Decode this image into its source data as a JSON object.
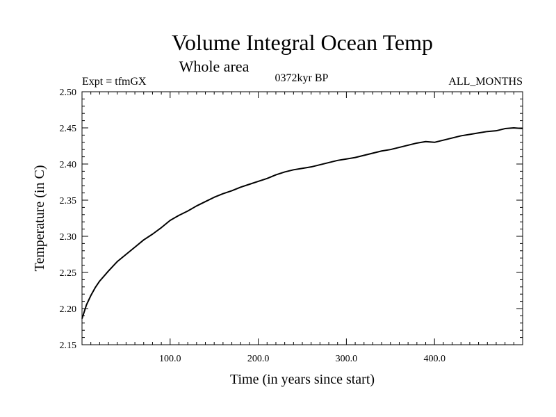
{
  "chart_data": {
    "type": "line",
    "title": "Volume Integral Ocean Temp",
    "subtitle": "Whole area",
    "header_left": "Expt = tfmGX",
    "header_center": "0372kyr BP",
    "header_right": "ALL_MONTHS",
    "xlabel": "Time (in years since start)",
    "ylabel": "Temperature (in C)",
    "xlim": [
      0,
      500
    ],
    "ylim": [
      2.15,
      2.5
    ],
    "x_ticks": [
      100,
      200,
      300,
      400
    ],
    "x_tick_labels": [
      "100.0",
      "200.0",
      "300.0",
      "400.0"
    ],
    "y_ticks": [
      2.15,
      2.2,
      2.25,
      2.3,
      2.35,
      2.4,
      2.45,
      2.5
    ],
    "y_tick_labels": [
      "2.15",
      "2.20",
      "2.25",
      "2.30",
      "2.35",
      "2.40",
      "2.45",
      "2.50"
    ],
    "grid": false,
    "series": [
      {
        "color": "#000000",
        "x": [
          0,
          5,
          10,
          15,
          20,
          30,
          40,
          50,
          60,
          70,
          80,
          90,
          100,
          110,
          120,
          130,
          140,
          150,
          160,
          170,
          180,
          190,
          200,
          210,
          220,
          230,
          240,
          250,
          260,
          270,
          280,
          290,
          300,
          310,
          320,
          330,
          340,
          350,
          360,
          370,
          380,
          390,
          400,
          410,
          420,
          430,
          440,
          450,
          460,
          470,
          480,
          490,
          500
        ],
        "y": [
          2.186,
          2.205,
          2.218,
          2.229,
          2.238,
          2.252,
          2.265,
          2.275,
          2.285,
          2.295,
          2.303,
          2.312,
          2.322,
          2.329,
          2.335,
          2.342,
          2.348,
          2.354,
          2.359,
          2.363,
          2.368,
          2.372,
          2.376,
          2.38,
          2.385,
          2.389,
          2.392,
          2.394,
          2.396,
          2.399,
          2.402,
          2.405,
          2.407,
          2.409,
          2.412,
          2.415,
          2.418,
          2.42,
          2.423,
          2.426,
          2.429,
          2.431,
          2.43,
          2.433,
          2.436,
          2.439,
          2.441,
          2.443,
          2.445,
          2.446,
          2.449,
          2.45,
          2.449
        ]
      }
    ]
  }
}
